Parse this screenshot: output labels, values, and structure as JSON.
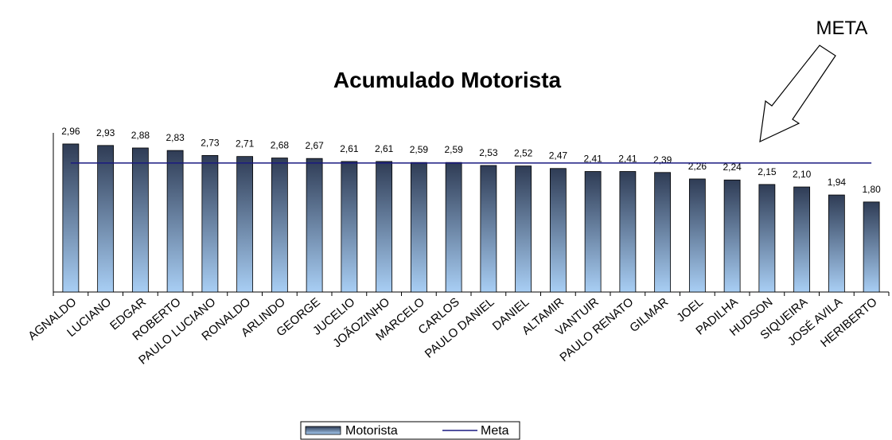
{
  "chart_data": {
    "type": "bar",
    "title": "Acumulado Motorista",
    "annotation": "META",
    "categories": [
      "AGNALDO",
      "LUCIANO",
      "EDGAR",
      "ROBERTO",
      "PAULO LUCIANO",
      "RONALDO",
      "ARLINDO",
      "GEORGE",
      "JUCELIO",
      "JOÃOZINHO",
      "MARCELO",
      "CARLOS",
      "PAULO DANIEL",
      "DANIEL",
      "ALTAMIR",
      "VANTUIR",
      "PAULO RENATO",
      "GILMAR",
      "JOEL",
      "PADILHA",
      "HUDSON",
      "SIQUEIRA",
      "JOSÉ AVILA",
      "HERIBERTO"
    ],
    "series": [
      {
        "name": "Motorista",
        "color": "#2f3c55",
        "values": [
          2.96,
          2.93,
          2.88,
          2.83,
          2.73,
          2.71,
          2.68,
          2.67,
          2.61,
          2.61,
          2.59,
          2.59,
          2.53,
          2.52,
          2.47,
          2.41,
          2.41,
          2.39,
          2.26,
          2.24,
          2.15,
          2.1,
          1.94,
          1.8
        ],
        "value_labels": [
          "2,96",
          "2,93",
          "2,88",
          "2,83",
          "2,73",
          "2,71",
          "2,68",
          "2,67",
          "2,61",
          "2,61",
          "2,59",
          "2,59",
          "2,53",
          "2,52",
          "2,47",
          "2,41",
          "2,41",
          "2,39",
          "2,26",
          "2,24",
          "2,15",
          "2,10",
          "1,94",
          "1,80"
        ]
      },
      {
        "name": "Meta",
        "type": "line",
        "color": "#1a1a80",
        "values": [
          2.58,
          2.58,
          2.58,
          2.58,
          2.58,
          2.58,
          2.58,
          2.58,
          2.58,
          2.58,
          2.58,
          2.58,
          2.58,
          2.58,
          2.58,
          2.58,
          2.58,
          2.58,
          2.58,
          2.58,
          2.58,
          2.58,
          2.58,
          2.58
        ]
      }
    ],
    "ylim": [
      0,
      3.5
    ],
    "legend": "bottom"
  }
}
